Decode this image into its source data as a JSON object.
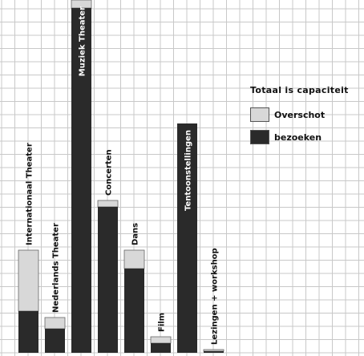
{
  "chart_data": {
    "type": "bar",
    "stacked": true,
    "categories": [
      "Internationaal Theater",
      "Nederlands Theater",
      "Muziek Theater",
      "Concerten",
      "Dans",
      "Film",
      "Tentoonstellingen",
      "Lezingen + workshop"
    ],
    "series": [
      {
        "name": "bezoeken",
        "values": [
          52,
          30,
          430,
          182,
          105,
          12,
          286,
          2
        ]
      },
      {
        "name": "Overschot",
        "values": [
          76,
          14,
          10,
          8,
          23,
          8,
          0,
          2
        ]
      }
    ],
    "legend_title": "Totaal is capaciteit",
    "legend_position": "right",
    "grid": true,
    "colors": {
      "bezoeken": "#2a2a2a",
      "Overschot": "#d8d8d8",
      "grid": "#c8c8c8",
      "bar_outline": "#666666"
    }
  }
}
